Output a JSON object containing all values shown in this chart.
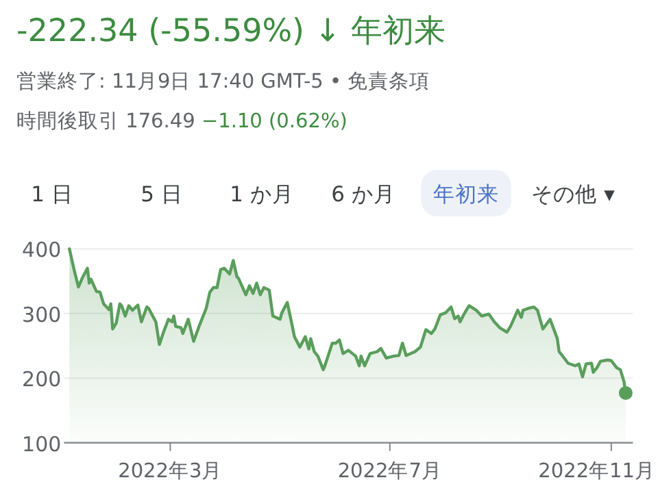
{
  "chart_data": {
    "type": "area",
    "title": "-222.34 (-55.59%) ↓ 年初来",
    "subtitle": "営業終了: 11月9日 17:40 GMT-5 • 免責条項",
    "annotations": [
      "時間後取引 176.49 −1.10 (0.62%)",
      "1 日",
      "5 日",
      "1 か月",
      "6 か月",
      "年初来",
      "その他 ▾"
    ],
    "xlim": [
      "2022-01-01",
      "2022-11-13"
    ],
    "ylim": [
      100,
      400
    ],
    "yticks": [
      100,
      200,
      300,
      400
    ],
    "xticks": [
      {
        "value": "2022-03-01",
        "label": "2022年3月"
      },
      {
        "value": "2022-07-01",
        "label": "2022年7月"
      },
      {
        "value": "2022-11-01",
        "label": "2022年11月"
      }
    ],
    "grid": "y",
    "series": [
      {
        "color": "#5a9e5c",
        "x": [
          "2022-01-04",
          "2022-01-06",
          "2022-01-07",
          "2022-01-09",
          "2022-01-11",
          "2022-01-14",
          "2022-01-15",
          "2022-01-16",
          "2022-01-19",
          "2022-01-21",
          "2022-01-23",
          "2022-01-26",
          "2022-01-27",
          "2022-01-28",
          "2022-01-30",
          "2022-02-01",
          "2022-02-02",
          "2022-02-04",
          "2022-02-06",
          "2022-02-08",
          "2022-02-11",
          "2022-02-13",
          "2022-02-16",
          "2022-02-17",
          "2022-02-21",
          "2022-02-23",
          "2022-02-25",
          "2022-02-28",
          "2022-03-02",
          "2022-03-03",
          "2022-03-04",
          "2022-03-07",
          "2022-03-08",
          "2022-03-11",
          "2022-03-14",
          "2022-03-17",
          "2022-03-21",
          "2022-03-23",
          "2022-03-25",
          "2022-03-27",
          "2022-03-29",
          "2022-03-31",
          "2022-04-03",
          "2022-04-05",
          "2022-04-07",
          "2022-04-08",
          "2022-04-12",
          "2022-04-14",
          "2022-04-16",
          "2022-04-18",
          "2022-04-20",
          "2022-04-22",
          "2022-04-25",
          "2022-04-27",
          "2022-05-01",
          "2022-05-02",
          "2022-05-05",
          "2022-05-07",
          "2022-05-09",
          "2022-05-12",
          "2022-05-15",
          "2022-05-17",
          "2022-05-18",
          "2022-05-20",
          "2022-05-22",
          "2022-05-24",
          "2022-05-25",
          "2022-05-26",
          "2022-05-30",
          "2022-06-01",
          "2022-06-03",
          "2022-06-05",
          "2022-06-08",
          "2022-06-12",
          "2022-06-14",
          "2022-06-15",
          "2022-06-17",
          "2022-06-20",
          "2022-06-24",
          "2022-06-26",
          "2022-06-29",
          "2022-07-03",
          "2022-07-06",
          "2022-07-08",
          "2022-07-10",
          "2022-07-15",
          "2022-07-18",
          "2022-07-21",
          "2022-07-24",
          "2022-07-26",
          "2022-07-29",
          "2022-08-01",
          "2022-08-04",
          "2022-08-06",
          "2022-08-08",
          "2022-08-09",
          "2022-08-11",
          "2022-08-14",
          "2022-08-18",
          "2022-08-21",
          "2022-08-25",
          "2022-08-28",
          "2022-08-31",
          "2022-09-04",
          "2022-09-06",
          "2022-09-10",
          "2022-09-12",
          "2022-09-13",
          "2022-09-16",
          "2022-09-19",
          "2022-09-21",
          "2022-09-24",
          "2022-09-28",
          "2022-10-02",
          "2022-10-03",
          "2022-10-05",
          "2022-10-08",
          "2022-10-12",
          "2022-10-14",
          "2022-10-16",
          "2022-10-18",
          "2022-10-21",
          "2022-10-22",
          "2022-10-24",
          "2022-10-26",
          "2022-10-30",
          "2022-11-01",
          "2022-11-04",
          "2022-11-06",
          "2022-11-08",
          "2022-11-09"
        ],
        "values": [
          400,
          375,
          363,
          341,
          354,
          370,
          347,
          353,
          334,
          333,
          315,
          306,
          315,
          276,
          285,
          315,
          312,
          296,
          312,
          305,
          313,
          287,
          310,
          308,
          287,
          252,
          269,
          291,
          287,
          296,
          280,
          278,
          269,
          291,
          257,
          280,
          308,
          333,
          340,
          340,
          368,
          370,
          361,
          382,
          357,
          354,
          329,
          343,
          331,
          347,
          329,
          340,
          336,
          296,
          291,
          301,
          317,
          291,
          264,
          248,
          264,
          245,
          261,
          241,
          234,
          220,
          213,
          220,
          254,
          254,
          259,
          238,
          243,
          234,
          219,
          234,
          219,
          238,
          241,
          246,
          231,
          234,
          235,
          254,
          235,
          241,
          248,
          275,
          269,
          276,
          298,
          301,
          310,
          292,
          296,
          287,
          298,
          312,
          305,
          296,
          299,
          287,
          278,
          271,
          280,
          305,
          294,
          305,
          308,
          310,
          305,
          276,
          291,
          261,
          241,
          234,
          223,
          219,
          222,
          202,
          222,
          223,
          209,
          216,
          226,
          228,
          227,
          216,
          213,
          195,
          177
        ]
      },
      {
        "type": "scatter",
        "color": "#5a9e5c",
        "marker": "circle",
        "x": [
          "2022-11-09"
        ],
        "values": [
          177
        ]
      }
    ]
  }
}
